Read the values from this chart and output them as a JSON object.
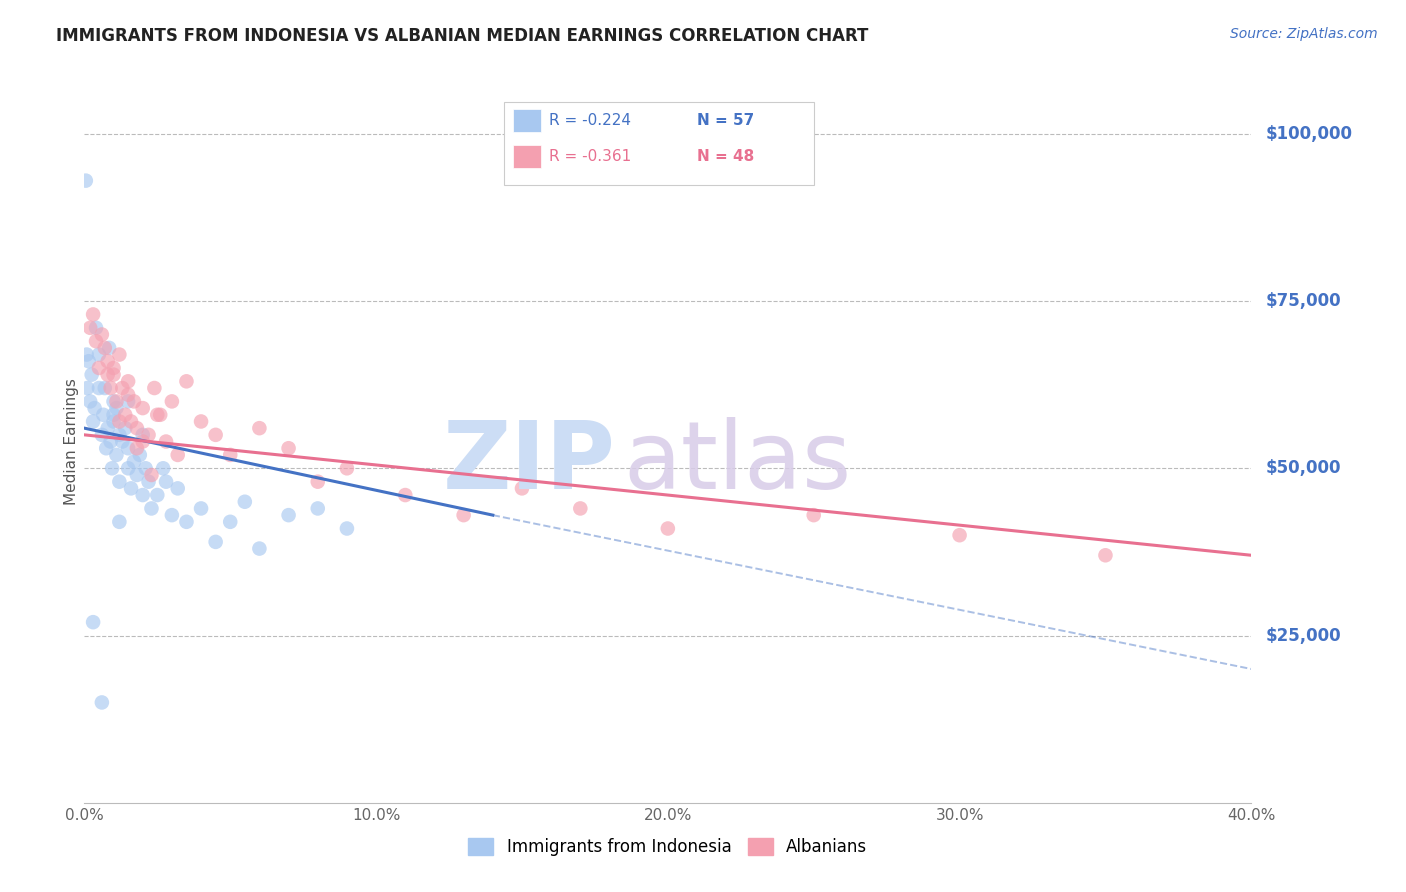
{
  "title": "IMMIGRANTS FROM INDONESIA VS ALBANIAN MEDIAN EARNINGS CORRELATION CHART",
  "source": "Source: ZipAtlas.com",
  "ylabel": "Median Earnings",
  "ytick_vals": [
    25000,
    50000,
    75000,
    100000
  ],
  "ytick_labels": [
    "$25,000",
    "$50,000",
    "$75,000",
    "$100,000"
  ],
  "ylim": [
    0,
    108000
  ],
  "xlim": [
    0,
    40
  ],
  "legend_entries": [
    {
      "label": "Immigrants from Indonesia",
      "R": "-0.224",
      "N": "57",
      "color": "#a8c8f0"
    },
    {
      "label": "Albanians",
      "R": "-0.361",
      "N": "48",
      "color": "#f4a0b0"
    }
  ],
  "indonesia_x": [
    0.05,
    0.08,
    0.1,
    0.15,
    0.2,
    0.25,
    0.3,
    0.35,
    0.4,
    0.5,
    0.5,
    0.6,
    0.65,
    0.7,
    0.75,
    0.8,
    0.85,
    0.9,
    0.95,
    1.0,
    1.0,
    1.1,
    1.1,
    1.2,
    1.2,
    1.3,
    1.4,
    1.5,
    1.5,
    1.6,
    1.7,
    1.8,
    1.9,
    2.0,
    2.0,
    2.1,
    2.2,
    2.3,
    2.5,
    2.7,
    3.0,
    3.2,
    3.5,
    4.0,
    4.5,
    5.0,
    5.5,
    6.0,
    7.0,
    8.0,
    9.0,
    0.3,
    1.0,
    1.5,
    2.8,
    1.2,
    0.6
  ],
  "indonesia_y": [
    93000,
    67000,
    62000,
    66000,
    60000,
    64000,
    57000,
    59000,
    71000,
    62000,
    67000,
    55000,
    58000,
    62000,
    53000,
    56000,
    68000,
    54000,
    50000,
    60000,
    57000,
    52000,
    59000,
    55000,
    48000,
    54000,
    56000,
    50000,
    53000,
    47000,
    51000,
    49000,
    52000,
    46000,
    55000,
    50000,
    48000,
    44000,
    46000,
    50000,
    43000,
    47000,
    42000,
    44000,
    39000,
    42000,
    45000,
    38000,
    43000,
    44000,
    41000,
    27000,
    58000,
    60000,
    48000,
    42000,
    15000
  ],
  "albanian_x": [
    0.2,
    0.3,
    0.4,
    0.5,
    0.6,
    0.7,
    0.8,
    0.9,
    1.0,
    1.1,
    1.2,
    1.3,
    1.4,
    1.5,
    1.6,
    1.7,
    1.8,
    2.0,
    2.2,
    2.4,
    2.6,
    2.8,
    3.0,
    3.5,
    4.0,
    5.0,
    6.0,
    7.0,
    9.0,
    11.0,
    13.0,
    15.0,
    17.0,
    20.0,
    25.0,
    30.0,
    35.0,
    1.2,
    1.5,
    2.0,
    2.5,
    3.2,
    0.8,
    1.0,
    1.8,
    2.3,
    4.5,
    8.0
  ],
  "albanian_y": [
    71000,
    73000,
    69000,
    65000,
    70000,
    68000,
    64000,
    62000,
    65000,
    60000,
    67000,
    62000,
    58000,
    63000,
    57000,
    60000,
    56000,
    59000,
    55000,
    62000,
    58000,
    54000,
    60000,
    63000,
    57000,
    52000,
    56000,
    53000,
    50000,
    46000,
    43000,
    47000,
    44000,
    41000,
    43000,
    40000,
    37000,
    57000,
    61000,
    54000,
    58000,
    52000,
    66000,
    64000,
    53000,
    49000,
    55000,
    48000
  ],
  "indonesia_trend_x0": 0.0,
  "indonesia_trend_x1": 14.0,
  "indonesia_trend_y0": 56000,
  "indonesia_trend_y1": 43000,
  "indonesia_dash_x0": 14.0,
  "indonesia_dash_x1": 40.0,
  "indonesia_dash_y0": 43000,
  "indonesia_dash_y1": 20000,
  "albanian_trend_x0": 0.0,
  "albanian_trend_x1": 40.0,
  "albanian_trend_y0": 55000,
  "albanian_trend_y1": 37000,
  "scatter_color_indonesia": "#a8c8f0",
  "scatter_color_albanian": "#f4a0b0",
  "trend_color_indonesia": "#4472c4",
  "trend_color_albanian": "#e87090",
  "background_color": "#ffffff",
  "watermark_zip_color": "#ccddf5",
  "watermark_atlas_color": "#d8cce8",
  "right_ytick_color": "#4472c4",
  "title_fontsize": 12,
  "source_fontsize": 10
}
